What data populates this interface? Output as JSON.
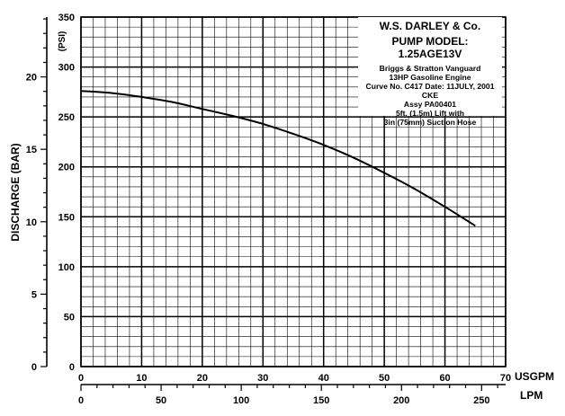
{
  "chart_data": {
    "type": "line",
    "left_axis_bar": {
      "label": "DISCHARGE (BAR)",
      "ticks": [
        "0",
        "5",
        "10",
        "15",
        "20"
      ],
      "range": [
        0,
        24.13
      ]
    },
    "left_axis_psi": {
      "label": "(PSI)",
      "ticks": [
        "0",
        "50",
        "100",
        "150",
        "200",
        "250",
        "300",
        "350"
      ],
      "range": [
        0,
        350
      ]
    },
    "bottom_axis_usgpm": {
      "label": "USGPM",
      "ticks": [
        "0",
        "10",
        "20",
        "30",
        "40",
        "50",
        "60",
        "70"
      ],
      "range": [
        0,
        70
      ]
    },
    "bottom_axis_lpm": {
      "label": "LPM",
      "ticks": [
        "0",
        "50",
        "100",
        "150",
        "200",
        "250"
      ],
      "range": [
        0,
        264.98
      ]
    },
    "grid": true,
    "series": [
      {
        "x_usgpm": [
          0,
          5,
          10,
          15,
          20,
          25,
          30,
          35,
          40,
          45,
          50,
          55,
          60,
          65
        ],
        "y_psi": [
          276,
          274,
          270,
          265,
          258,
          251,
          243,
          233,
          222,
          209,
          194,
          178,
          160,
          141
        ]
      }
    ],
    "info": {
      "company": "W.S. DARLEY & Co.",
      "model_line1": "PUMP MODEL:",
      "model_line2": "1.25AGE13V",
      "lines": [
        "Briggs & Stratton Vanguard",
        "13HP Gasoline Engine",
        "Curve No. C417 Date: 11JULY, 2001 CKE",
        "Assy PA00401",
        "5ft. (1.5m) Lift with",
        "3in (75mm) Suction Hose"
      ]
    }
  }
}
